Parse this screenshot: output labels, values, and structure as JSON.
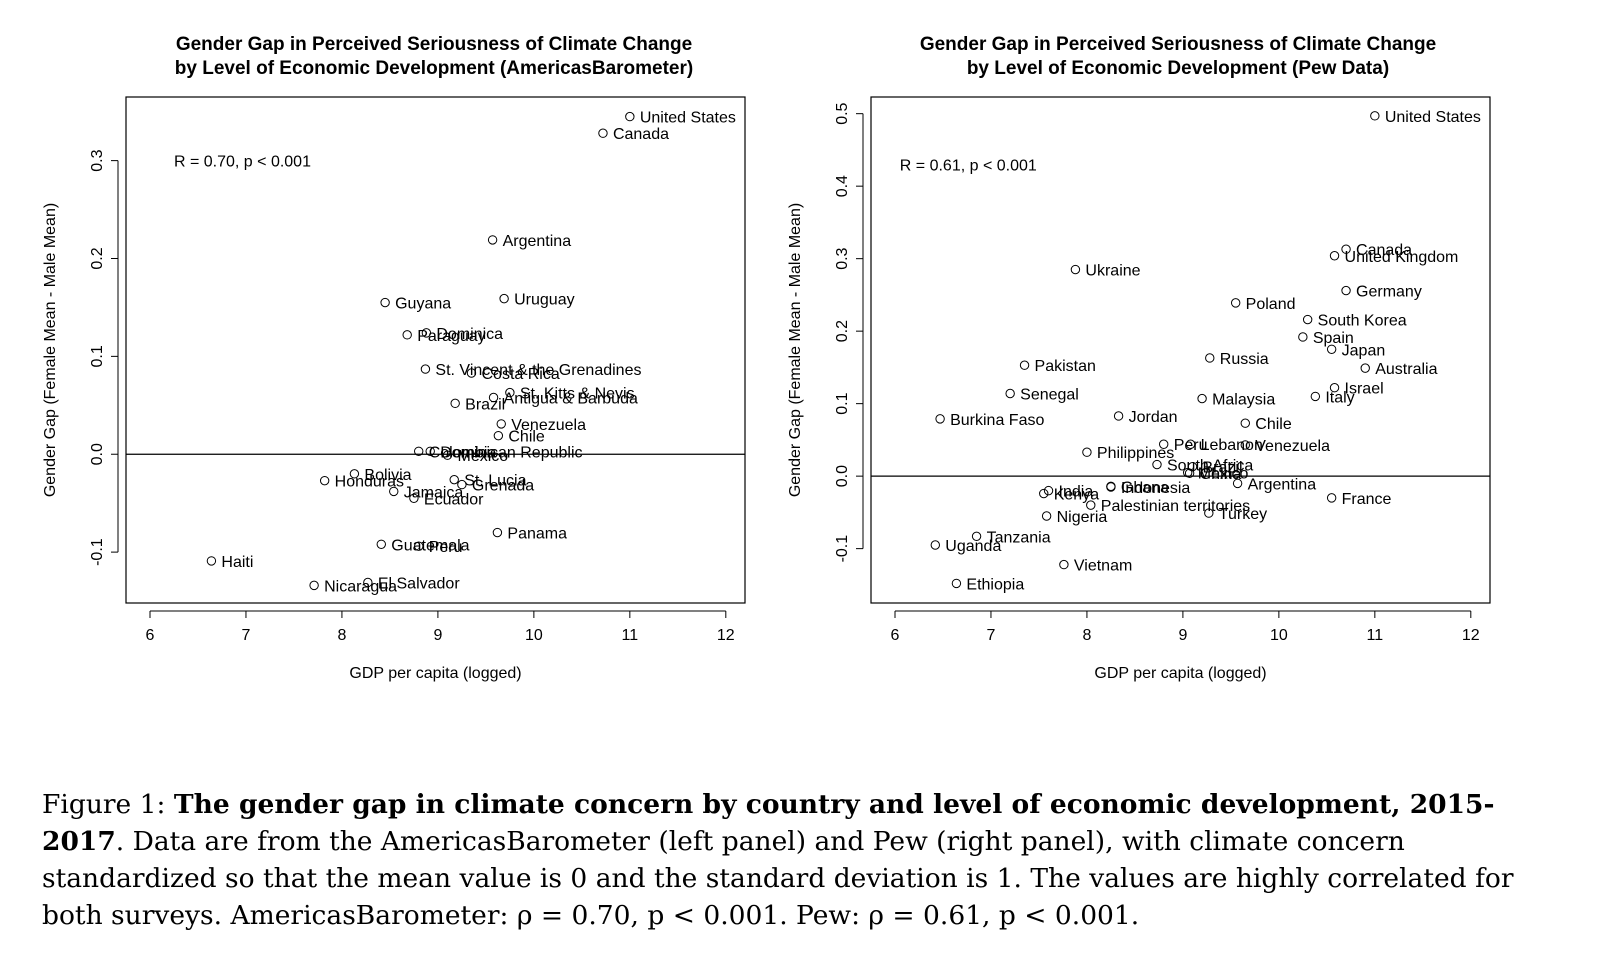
{
  "chart_data": [
    {
      "type": "scatter",
      "title_line1": "Gender Gap in Perceived Seriousness of Climate Change",
      "title_line2": "by Level of Economic Development (AmericasBarometer)",
      "xlabel": "GDP per capita (logged)",
      "ylabel": "Gender Gap (Female Mean - Male Mean)",
      "xlim": [
        5.75,
        12.2
      ],
      "ylim": [
        -0.152,
        0.365
      ],
      "xticks": [
        6,
        7,
        8,
        9,
        10,
        11,
        12
      ],
      "yticks": [
        -0.1,
        0.0,
        0.1,
        0.2,
        0.3
      ],
      "ytick_labels": [
        "-0.1",
        "0.0",
        "0.1",
        "0.2",
        "0.3"
      ],
      "reference_line_y": 0,
      "annotation": "R = 0.70, p < 0.001",
      "annotation_pos": [
        6.25,
        0.3
      ],
      "points": [
        {
          "label": "United States",
          "x": 11.0,
          "y": 0.345
        },
        {
          "label": "Canada",
          "x": 10.72,
          "y": 0.328
        },
        {
          "label": "Argentina",
          "x": 9.57,
          "y": 0.219
        },
        {
          "label": "Uruguay",
          "x": 9.69,
          "y": 0.159
        },
        {
          "label": "Guyana",
          "x": 8.45,
          "y": 0.155
        },
        {
          "label": "Dominica",
          "x": 8.88,
          "y": 0.124
        },
        {
          "label": "Paraguay",
          "x": 8.68,
          "y": 0.122
        },
        {
          "label": "St. Vincent & the Grenadines",
          "x": 8.87,
          "y": 0.087
        },
        {
          "label": "Costa Rica",
          "x": 9.35,
          "y": 0.083
        },
        {
          "label": "St. Kitts & Nevis",
          "x": 9.75,
          "y": 0.063
        },
        {
          "label": "Antigua & Barbuda",
          "x": 9.58,
          "y": 0.058
        },
        {
          "label": "Brazil",
          "x": 9.18,
          "y": 0.052
        },
        {
          "label": "Venezuela",
          "x": 9.66,
          "y": 0.031
        },
        {
          "label": "Chile",
          "x": 9.63,
          "y": 0.019
        },
        {
          "label": "Colombia",
          "x": 8.8,
          "y": 0.003
        },
        {
          "label": "Dominican Republic",
          "x": 8.92,
          "y": 0.003
        },
        {
          "label": "Mexico",
          "x": 9.1,
          "y": -0.001
        },
        {
          "label": "Bolivia",
          "x": 8.13,
          "y": -0.02
        },
        {
          "label": "Honduras",
          "x": 7.82,
          "y": -0.027
        },
        {
          "label": "St. Lucia",
          "x": 9.17,
          "y": -0.026
        },
        {
          "label": "Grenada",
          "x": 9.25,
          "y": -0.031
        },
        {
          "label": "Jamaica",
          "x": 8.54,
          "y": -0.038
        },
        {
          "label": "Ecuador",
          "x": 8.75,
          "y": -0.045
        },
        {
          "label": "Panama",
          "x": 9.62,
          "y": -0.08
        },
        {
          "label": "Guatemala",
          "x": 8.41,
          "y": -0.092
        },
        {
          "label": "Peru",
          "x": 8.8,
          "y": -0.094
        },
        {
          "label": "Haiti",
          "x": 6.64,
          "y": -0.109
        },
        {
          "label": "El Salvador",
          "x": 8.27,
          "y": -0.131
        },
        {
          "label": "Nicaragua",
          "x": 7.71,
          "y": -0.134
        }
      ]
    },
    {
      "type": "scatter",
      "title_line1": "Gender Gap in Perceived Seriousness of Climate Change",
      "title_line2": "by Level of Economic Development (Pew Data)",
      "xlabel": "GDP per capita (logged)",
      "ylabel": "Gender Gap (Female Mean - Male Mean)",
      "xlim": [
        5.75,
        12.2
      ],
      "ylim": [
        -0.175,
        0.523
      ],
      "xticks": [
        6,
        7,
        8,
        9,
        10,
        11,
        12
      ],
      "yticks": [
        -0.1,
        0.0,
        0.1,
        0.2,
        0.3,
        0.4,
        0.5
      ],
      "ytick_labels": [
        "-0.1",
        "0.0",
        "0.1",
        "0.2",
        "0.3",
        "0.4",
        "0.5"
      ],
      "reference_line_y": 0,
      "annotation": "R = 0.61, p < 0.001",
      "annotation_pos": [
        6.05,
        0.43
      ],
      "points": [
        {
          "label": "United States",
          "x": 11.0,
          "y": 0.497
        },
        {
          "label": "Canada",
          "x": 10.7,
          "y": 0.313
        },
        {
          "label": "United Kingdom",
          "x": 10.58,
          "y": 0.304
        },
        {
          "label": "Ukraine",
          "x": 7.88,
          "y": 0.285
        },
        {
          "label": "Germany",
          "x": 10.7,
          "y": 0.256
        },
        {
          "label": "Poland",
          "x": 9.55,
          "y": 0.239
        },
        {
          "label": "South Korea",
          "x": 10.3,
          "y": 0.216
        },
        {
          "label": "Spain",
          "x": 10.25,
          "y": 0.192
        },
        {
          "label": "Japan",
          "x": 10.55,
          "y": 0.175
        },
        {
          "label": "Russia",
          "x": 9.28,
          "y": 0.163
        },
        {
          "label": "Pakistan",
          "x": 7.35,
          "y": 0.153
        },
        {
          "label": "Australia",
          "x": 10.9,
          "y": 0.149
        },
        {
          "label": "Israel",
          "x": 10.58,
          "y": 0.122
        },
        {
          "label": "Senegal",
          "x": 7.2,
          "y": 0.114
        },
        {
          "label": "Italy",
          "x": 10.38,
          "y": 0.11
        },
        {
          "label": "Malaysia",
          "x": 9.2,
          "y": 0.107
        },
        {
          "label": "Jordan",
          "x": 8.33,
          "y": 0.083
        },
        {
          "label": "Burkina Faso",
          "x": 6.47,
          "y": 0.079
        },
        {
          "label": "Chile",
          "x": 9.65,
          "y": 0.073
        },
        {
          "label": "Peru",
          "x": 8.8,
          "y": 0.044
        },
        {
          "label": "Lebanon",
          "x": 9.08,
          "y": 0.044
        },
        {
          "label": "Venezuela",
          "x": 9.65,
          "y": 0.043
        },
        {
          "label": "Philippines",
          "x": 8.0,
          "y": 0.033
        },
        {
          "label": "South Africa",
          "x": 8.73,
          "y": 0.016
        },
        {
          "label": "Brazil",
          "x": 9.1,
          "y": 0.013
        },
        {
          "label": "Mexico",
          "x": 9.05,
          "y": 0.005
        },
        {
          "label": "China",
          "x": 9.07,
          "y": 0.004
        },
        {
          "label": "Argentina",
          "x": 9.57,
          "y": -0.01
        },
        {
          "label": "Ghana",
          "x": 8.25,
          "y": -0.014
        },
        {
          "label": "Indonesia",
          "x": 8.25,
          "y": -0.015
        },
        {
          "label": "India",
          "x": 7.6,
          "y": -0.02
        },
        {
          "label": "Kenya",
          "x": 7.55,
          "y": -0.024
        },
        {
          "label": "France",
          "x": 10.55,
          "y": -0.03
        },
        {
          "label": "Palestinian territories",
          "x": 8.04,
          "y": -0.04
        },
        {
          "label": "Nigeria",
          "x": 7.58,
          "y": -0.055
        },
        {
          "label": "Turkey",
          "x": 9.27,
          "y": -0.051
        },
        {
          "label": "Tanzania",
          "x": 6.85,
          "y": -0.083
        },
        {
          "label": "Uganda",
          "x": 6.42,
          "y": -0.095
        },
        {
          "label": "Vietnam",
          "x": 7.76,
          "y": -0.122
        },
        {
          "label": "Ethiopia",
          "x": 6.64,
          "y": -0.148
        }
      ]
    }
  ],
  "caption": {
    "prefix": "Figure 1: ",
    "bold": "The gender gap in climate concern by country and level of economic development, 2015-2017",
    "rest": ". Data are from the AmericasBarometer (left panel) and Pew (right panel), with climate concern standardized so that the mean value is 0 and the standard deviation is 1. The values are highly correlated for both surveys. AmericasBarometer: ρ = 0.70, p < 0.001. Pew: ρ = 0.61, p < 0.001."
  }
}
